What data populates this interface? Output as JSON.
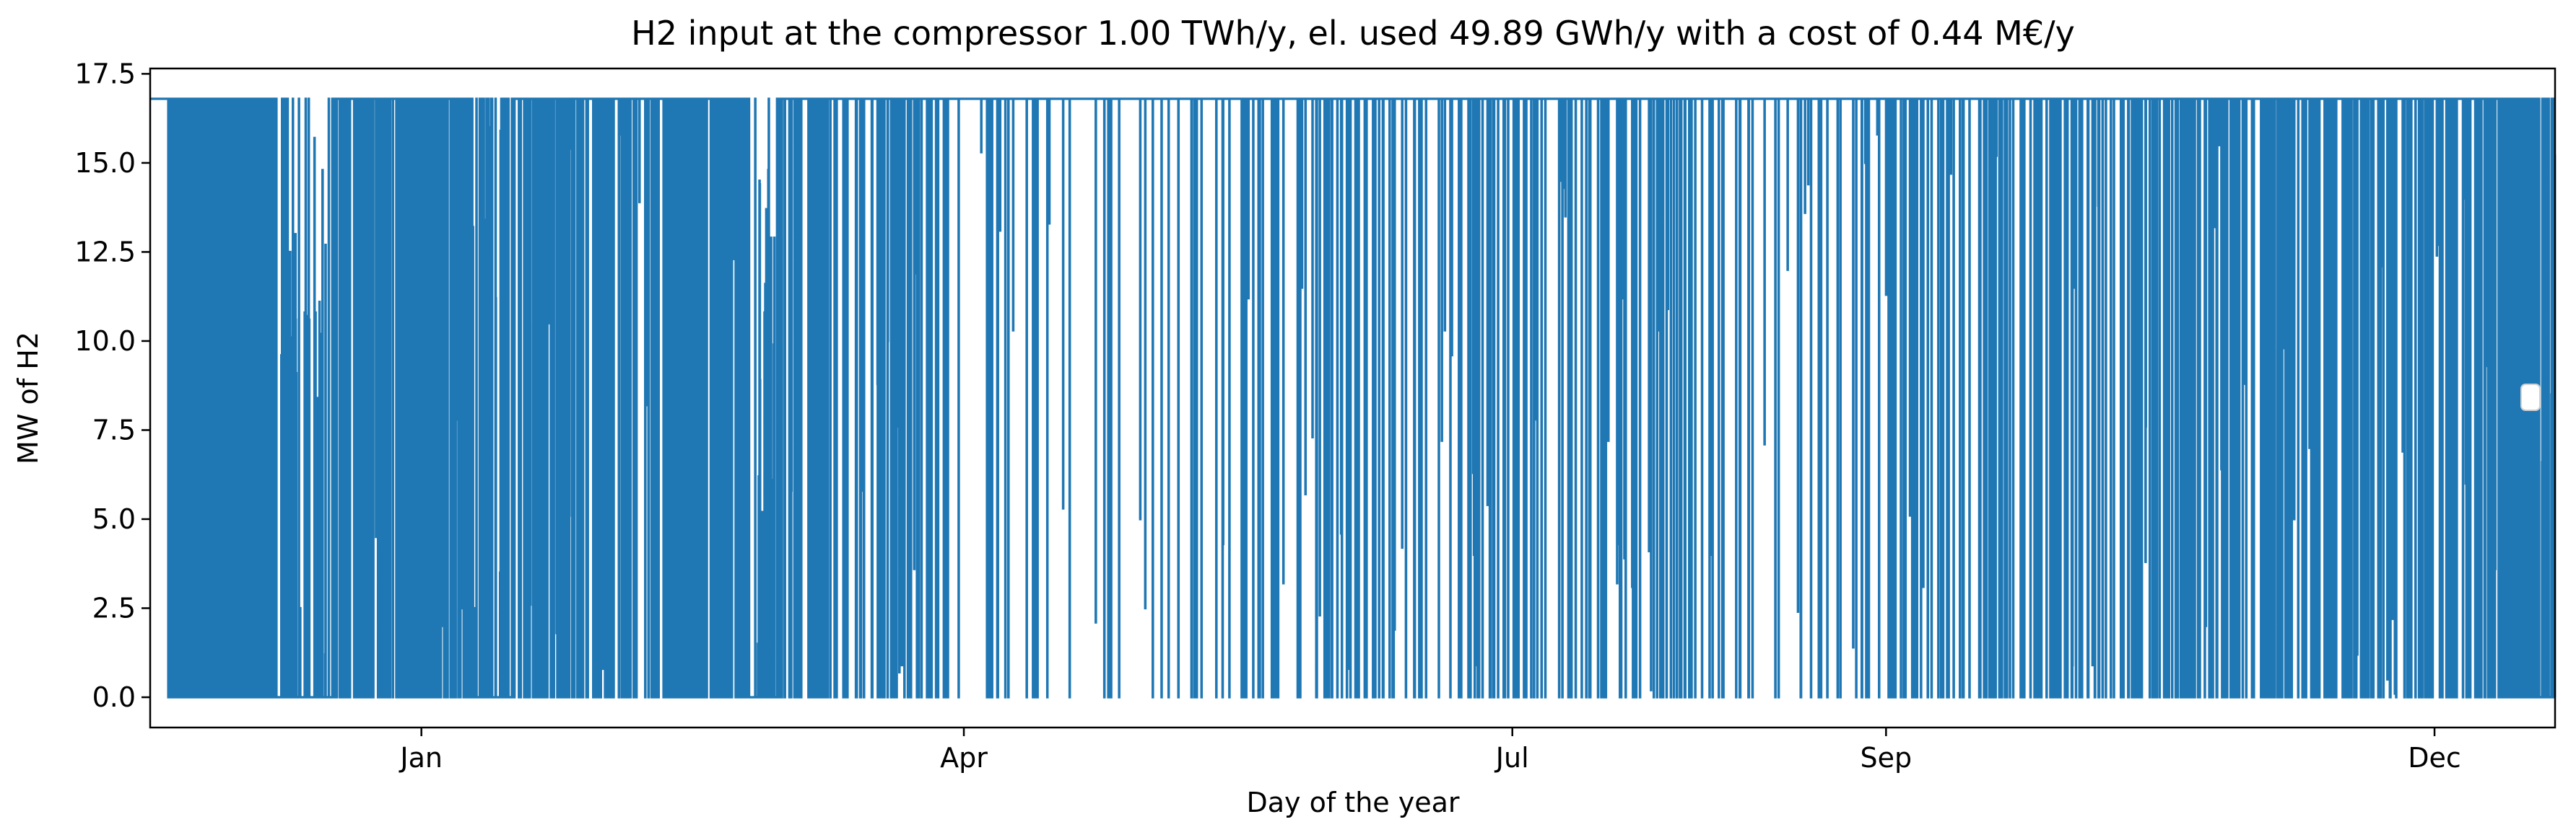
{
  "chart_data": {
    "type": "line",
    "title": "H2 input at the compressor 1.00 TWh/y, el. used 49.89 GWh/y with a cost of 0.44 M€/y",
    "xlabel": "Day of the year",
    "ylabel": "MW of H2",
    "x_ticks": [
      "Jan",
      "Apr",
      "Jul",
      "Sep",
      "Dec"
    ],
    "x_tick_dates": [
      "2023-01-01",
      "2023-04-01",
      "2023-07-01",
      "2023-09-01",
      "2023-12-01"
    ],
    "xlim": [
      "2022-11-17",
      "2023-12-21"
    ],
    "y_ticks": [
      "0.0",
      "2.5",
      "5.0",
      "7.5",
      "10.0",
      "12.5",
      "15.0",
      "17.5"
    ],
    "ylim": [
      -0.85,
      17.65
    ],
    "grid": false,
    "legend": "right",
    "series": [
      {
        "color": "#1f77b4",
        "max_value": 16.8,
        "min_value": 0.0,
        "band_segments": [
          {
            "start": "2022-11-17",
            "end": "2022-11-20",
            "level": 16.8
          },
          {
            "start": "2022-11-20",
            "end": "2022-12-08",
            "level": 16.8,
            "density": 0.55
          },
          {
            "start": "2022-12-08",
            "end": "2022-12-18",
            "level": 0.0,
            "density": 0.05
          },
          {
            "start": "2022-12-18",
            "end": "2023-01-09",
            "level": 16.8,
            "density": 0.75
          },
          {
            "start": "2023-01-09",
            "end": "2023-01-16",
            "level": 0.0,
            "density": 0.12
          },
          {
            "start": "2023-01-16",
            "end": "2023-02-24",
            "level": 16.8,
            "density": 0.8
          },
          {
            "start": "2023-02-24",
            "end": "2023-03-01",
            "level": 0.0,
            "density": 0.05
          },
          {
            "start": "2023-03-01",
            "end": "2023-03-30",
            "level": 16.8,
            "density": 0.9
          },
          {
            "start": "2023-03-30",
            "end": "2023-05-12",
            "level": 16.8,
            "density": 0.97
          },
          {
            "start": "2023-05-12",
            "end": "2023-08-20",
            "level": 16.8,
            "density": 0.93
          },
          {
            "start": "2023-08-20",
            "end": "2023-10-15",
            "level": 16.8,
            "density": 0.9
          },
          {
            "start": "2023-10-15",
            "end": "2023-12-12",
            "level": 16.8,
            "density": 0.85
          },
          {
            "start": "2023-12-12",
            "end": "2023-12-21",
            "level": 0.0,
            "density": 0.3
          }
        ]
      }
    ]
  }
}
